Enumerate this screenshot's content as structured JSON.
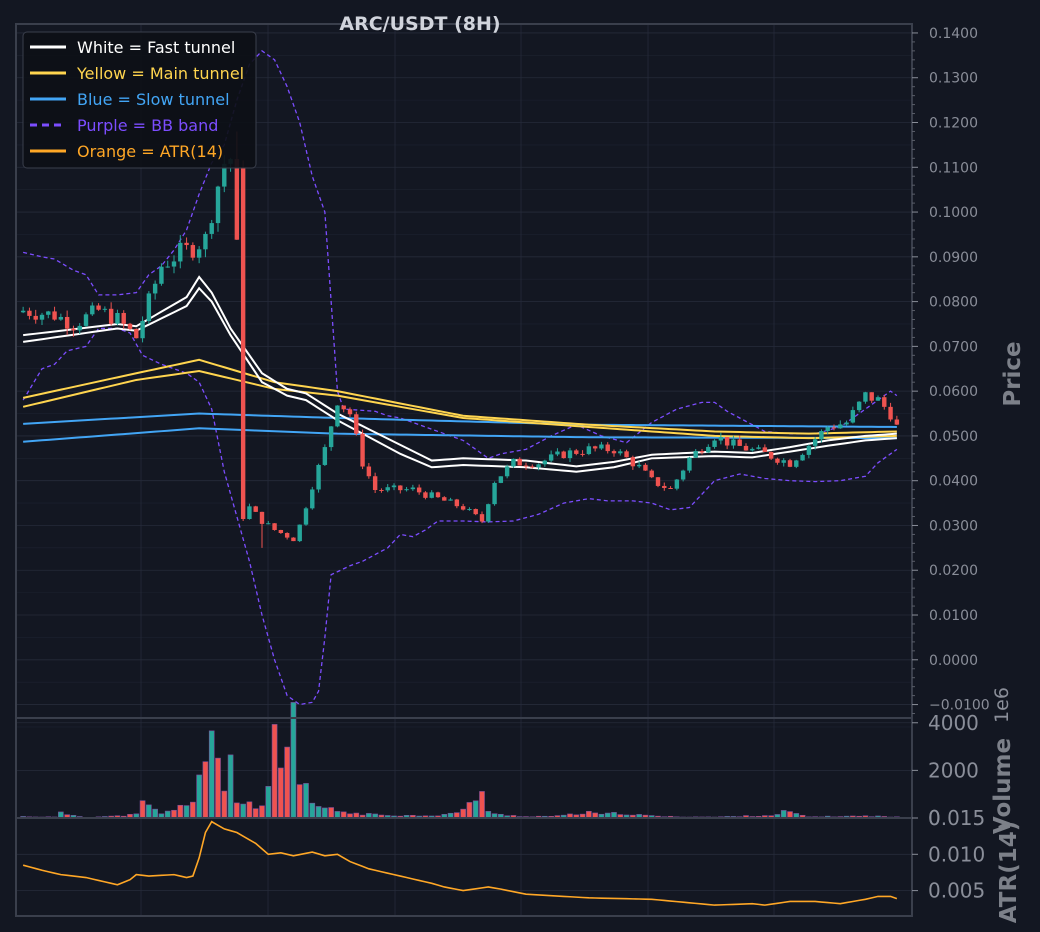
{
  "chart_data": {
    "type": "candlestick",
    "title": "ARC/USDT (8H)",
    "colors": {
      "background": "#131722",
      "up": "#26a69a",
      "down": "#ef5350",
      "fast_tunnel": "#ffffff",
      "main_tunnel": "#ffd54f",
      "slow_tunnel": "#42a5f5",
      "bb": "#7c4dff",
      "atr": "#ffa726",
      "grid": "#262b3a",
      "frame": "#3a3f4c"
    },
    "legend": {
      "position": "top-left",
      "entries": [
        {
          "label": "White = Fast tunnel",
          "color": "#ffffff",
          "style": "solid"
        },
        {
          "label": "Yellow = Main tunnel",
          "color": "#ffd54f",
          "style": "solid"
        },
        {
          "label": "Blue = Slow tunnel",
          "color": "#42a5f5",
          "style": "solid"
        },
        {
          "label": "Purple = BB band",
          "color": "#7c4dff",
          "style": "dashed"
        },
        {
          "label": "Orange = ATR(14)",
          "color": "#ffa726",
          "style": "solid"
        }
      ]
    },
    "price_panel": {
      "ylabel": "Price",
      "ylim": [
        -0.013,
        0.142
      ],
      "ticks": [
        "0.1400",
        "0.1300",
        "0.1200",
        "0.1100",
        "0.1000",
        "0.0900",
        "0.0800",
        "0.0700",
        "0.0600",
        "0.0500",
        "0.0400",
        "0.0300",
        "0.0200",
        "0.0100",
        "0.0000",
        "−0.0100"
      ],
      "tick_values": [
        0.14,
        0.13,
        0.12,
        0.11,
        0.1,
        0.09,
        0.08,
        0.07,
        0.06,
        0.05,
        0.04,
        0.03,
        0.02,
        0.01,
        0.0,
        -0.01
      ]
    },
    "volume_panel": {
      "ylabel": "Volume",
      "offset_text": "1e6",
      "ylim": [
        0,
        4200
      ],
      "ticks": [
        "4000",
        "2000",
        "0"
      ],
      "tick_values": [
        4000,
        2000,
        0
      ]
    },
    "atr_panel": {
      "ylabel": "ATR(14)",
      "ylim": [
        0.0015,
        0.015
      ],
      "ticks": [
        "0.015",
        "0.010",
        "0.005"
      ],
      "tick_values": [
        0.015,
        0.01,
        0.005
      ]
    },
    "n_bars": 140,
    "close_anchors": [
      [
        0,
        0.078
      ],
      [
        5,
        0.077
      ],
      [
        8,
        0.075
      ],
      [
        12,
        0.078
      ],
      [
        15,
        0.076
      ],
      [
        18,
        0.072
      ],
      [
        20,
        0.08
      ],
      [
        22,
        0.088
      ],
      [
        25,
        0.091
      ],
      [
        27,
        0.092
      ],
      [
        29,
        0.094
      ],
      [
        31,
        0.106
      ],
      [
        32,
        0.111
      ],
      [
        33,
        0.112
      ],
      [
        34,
        0.092
      ],
      [
        35,
        0.032
      ],
      [
        36,
        0.034
      ],
      [
        38,
        0.031
      ],
      [
        40,
        0.029
      ],
      [
        43,
        0.027
      ],
      [
        44,
        0.03
      ],
      [
        46,
        0.039
      ],
      [
        48,
        0.047
      ],
      [
        50,
        0.058
      ],
      [
        52,
        0.055
      ],
      [
        54,
        0.044
      ],
      [
        56,
        0.038
      ],
      [
        59,
        0.038
      ],
      [
        62,
        0.038
      ],
      [
        66,
        0.036
      ],
      [
        70,
        0.034
      ],
      [
        73,
        0.031
      ],
      [
        75,
        0.04
      ],
      [
        78,
        0.044
      ],
      [
        82,
        0.044
      ],
      [
        86,
        0.046
      ],
      [
        90,
        0.047
      ],
      [
        94,
        0.047
      ],
      [
        98,
        0.043
      ],
      [
        100,
        0.04
      ],
      [
        103,
        0.038
      ],
      [
        106,
        0.045
      ],
      [
        110,
        0.05
      ],
      [
        113,
        0.048
      ],
      [
        118,
        0.046
      ],
      [
        122,
        0.044
      ],
      [
        125,
        0.048
      ],
      [
        128,
        0.052
      ],
      [
        131,
        0.053
      ],
      [
        134,
        0.059
      ],
      [
        136,
        0.058
      ],
      [
        138,
        0.055
      ],
      [
        139,
        0.052
      ]
    ],
    "fast_upper_anchors": [
      [
        0,
        0.0725
      ],
      [
        15,
        0.075
      ],
      [
        18,
        0.0745
      ],
      [
        26,
        0.081
      ],
      [
        28,
        0.0855
      ],
      [
        30,
        0.082
      ],
      [
        33,
        0.074
      ],
      [
        38,
        0.064
      ],
      [
        42,
        0.0605
      ],
      [
        45,
        0.0595
      ],
      [
        50,
        0.055
      ],
      [
        60,
        0.048
      ],
      [
        65,
        0.0445
      ],
      [
        70,
        0.045
      ],
      [
        80,
        0.0445
      ],
      [
        88,
        0.0432
      ],
      [
        94,
        0.0442
      ],
      [
        100,
        0.0458
      ],
      [
        110,
        0.0465
      ],
      [
        116,
        0.0462
      ],
      [
        122,
        0.0475
      ],
      [
        128,
        0.049
      ],
      [
        134,
        0.05
      ],
      [
        139,
        0.0505
      ]
    ],
    "fast_lower_anchors": [
      [
        0,
        0.071
      ],
      [
        15,
        0.074
      ],
      [
        18,
        0.0735
      ],
      [
        26,
        0.079
      ],
      [
        28,
        0.083
      ],
      [
        30,
        0.08
      ],
      [
        33,
        0.0725
      ],
      [
        38,
        0.062
      ],
      [
        42,
        0.059
      ],
      [
        45,
        0.058
      ],
      [
        50,
        0.0535
      ],
      [
        60,
        0.046
      ],
      [
        65,
        0.043
      ],
      [
        70,
        0.0435
      ],
      [
        80,
        0.043
      ],
      [
        88,
        0.042
      ],
      [
        94,
        0.043
      ],
      [
        100,
        0.045
      ],
      [
        110,
        0.0455
      ],
      [
        116,
        0.0452
      ],
      [
        122,
        0.0465
      ],
      [
        128,
        0.0478
      ],
      [
        134,
        0.049
      ],
      [
        139,
        0.0495
      ]
    ],
    "main_upper_anchors": [
      [
        0,
        0.0585
      ],
      [
        18,
        0.064
      ],
      [
        28,
        0.067
      ],
      [
        40,
        0.062
      ],
      [
        50,
        0.06
      ],
      [
        70,
        0.0545
      ],
      [
        90,
        0.0525
      ],
      [
        110,
        0.051
      ],
      [
        125,
        0.0505
      ],
      [
        139,
        0.051
      ]
    ],
    "main_lower_anchors": [
      [
        0,
        0.0565
      ],
      [
        18,
        0.0625
      ],
      [
        28,
        0.0645
      ],
      [
        40,
        0.0605
      ],
      [
        50,
        0.059
      ],
      [
        70,
        0.054
      ],
      [
        90,
        0.052
      ],
      [
        110,
        0.05
      ],
      [
        125,
        0.0495
      ],
      [
        139,
        0.05
      ]
    ],
    "slow_upper_anchors": [
      [
        0,
        0.0527
      ],
      [
        28,
        0.055
      ],
      [
        50,
        0.054
      ],
      [
        90,
        0.0525
      ],
      [
        139,
        0.052
      ]
    ],
    "slow_lower_anchors": [
      [
        0,
        0.0487
      ],
      [
        28,
        0.0517
      ],
      [
        50,
        0.0505
      ],
      [
        90,
        0.0497
      ],
      [
        139,
        0.0495
      ]
    ],
    "bb_upper_anchors": [
      [
        0,
        0.091
      ],
      [
        3,
        0.09
      ],
      [
        5,
        0.0895
      ],
      [
        8,
        0.087
      ],
      [
        10,
        0.086
      ],
      [
        12,
        0.0815
      ],
      [
        15,
        0.0815
      ],
      [
        18,
        0.082
      ],
      [
        20,
        0.086
      ],
      [
        22,
        0.088
      ],
      [
        24,
        0.0915
      ],
      [
        26,
        0.096
      ],
      [
        28,
        0.104
      ],
      [
        30,
        0.111
      ],
      [
        32,
        0.115
      ],
      [
        34,
        0.125
      ],
      [
        36,
        0.133
      ],
      [
        38,
        0.136
      ],
      [
        40,
        0.134
      ],
      [
        42,
        0.128
      ],
      [
        44,
        0.12
      ],
      [
        46,
        0.108
      ],
      [
        48,
        0.1
      ],
      [
        49,
        0.08
      ],
      [
        50,
        0.06
      ],
      [
        51,
        0.056
      ],
      [
        56,
        0.0555
      ],
      [
        58,
        0.0545
      ],
      [
        60,
        0.054
      ],
      [
        64,
        0.052
      ],
      [
        70,
        0.049
      ],
      [
        74,
        0.045
      ],
      [
        76,
        0.046
      ],
      [
        80,
        0.047
      ],
      [
        84,
        0.05
      ],
      [
        88,
        0.0525
      ],
      [
        92,
        0.05
      ],
      [
        96,
        0.0485
      ],
      [
        100,
        0.053
      ],
      [
        104,
        0.056
      ],
      [
        108,
        0.0575
      ],
      [
        110,
        0.0575
      ],
      [
        112,
        0.0555
      ],
      [
        114,
        0.054
      ],
      [
        118,
        0.051
      ],
      [
        122,
        0.0505
      ],
      [
        126,
        0.0505
      ],
      [
        130,
        0.052
      ],
      [
        134,
        0.056
      ],
      [
        136,
        0.058
      ],
      [
        138,
        0.06
      ],
      [
        139,
        0.059
      ]
    ],
    "bb_lower_anchors": [
      [
        0,
        0.058
      ],
      [
        3,
        0.065
      ],
      [
        5,
        0.066
      ],
      [
        7,
        0.069
      ],
      [
        10,
        0.07
      ],
      [
        12,
        0.074
      ],
      [
        15,
        0.074
      ],
      [
        17,
        0.073
      ],
      [
        19,
        0.068
      ],
      [
        22,
        0.066
      ],
      [
        26,
        0.064
      ],
      [
        28,
        0.062
      ],
      [
        30,
        0.056
      ],
      [
        32,
        0.042
      ],
      [
        34,
        0.032
      ],
      [
        36,
        0.022
      ],
      [
        38,
        0.01
      ],
      [
        40,
        0.0
      ],
      [
        42,
        -0.008
      ],
      [
        44,
        -0.01
      ],
      [
        46,
        -0.0095
      ],
      [
        47,
        -0.007
      ],
      [
        48,
        0.005
      ],
      [
        49,
        0.019
      ],
      [
        52,
        0.021
      ],
      [
        54,
        0.022
      ],
      [
        58,
        0.025
      ],
      [
        60,
        0.028
      ],
      [
        62,
        0.0275
      ],
      [
        64,
        0.029
      ],
      [
        66,
        0.031
      ],
      [
        70,
        0.031
      ],
      [
        74,
        0.0308
      ],
      [
        78,
        0.031
      ],
      [
        82,
        0.0325
      ],
      [
        86,
        0.035
      ],
      [
        90,
        0.036
      ],
      [
        93,
        0.0355
      ],
      [
        97,
        0.0355
      ],
      [
        100,
        0.035
      ],
      [
        103,
        0.0335
      ],
      [
        106,
        0.034
      ],
      [
        110,
        0.04
      ],
      [
        114,
        0.0415
      ],
      [
        118,
        0.0405
      ],
      [
        122,
        0.04
      ],
      [
        126,
        0.0398
      ],
      [
        130,
        0.04
      ],
      [
        134,
        0.041
      ],
      [
        136,
        0.044
      ],
      [
        138,
        0.046
      ],
      [
        139,
        0.047
      ]
    ],
    "volume_anchors": [
      [
        0,
        60
      ],
      [
        5,
        40
      ],
      [
        6,
        200
      ],
      [
        10,
        30
      ],
      [
        15,
        80
      ],
      [
        18,
        150
      ],
      [
        19,
        600
      ],
      [
        21,
        350
      ],
      [
        22,
        200
      ],
      [
        24,
        300
      ],
      [
        27,
        800
      ],
      [
        28,
        1800
      ],
      [
        29,
        2500
      ],
      [
        30,
        3300
      ],
      [
        31,
        2000
      ],
      [
        32,
        1000
      ],
      [
        33,
        2900
      ],
      [
        34,
        700
      ],
      [
        35,
        600
      ],
      [
        36,
        650
      ],
      [
        38,
        400
      ],
      [
        39,
        1200
      ],
      [
        40,
        4000
      ],
      [
        41,
        2000
      ],
      [
        42,
        2300
      ],
      [
        43,
        4000
      ],
      [
        44,
        1300
      ],
      [
        45,
        1200
      ],
      [
        46,
        600
      ],
      [
        47,
        500
      ],
      [
        48,
        400
      ],
      [
        50,
        300
      ],
      [
        52,
        200
      ],
      [
        55,
        150
      ],
      [
        58,
        120
      ],
      [
        62,
        100
      ],
      [
        66,
        110
      ],
      [
        68,
        180
      ],
      [
        70,
        300
      ],
      [
        72,
        900
      ],
      [
        73,
        1100
      ],
      [
        74,
        300
      ],
      [
        75,
        150
      ],
      [
        80,
        60
      ],
      [
        85,
        80
      ],
      [
        90,
        220
      ],
      [
        92,
        150
      ],
      [
        95,
        200
      ],
      [
        98,
        120
      ],
      [
        102,
        60
      ],
      [
        110,
        40
      ],
      [
        120,
        120
      ],
      [
        121,
        300
      ],
      [
        122,
        250
      ],
      [
        123,
        150
      ],
      [
        125,
        50
      ],
      [
        134,
        80
      ],
      [
        135,
        80
      ],
      [
        139,
        40
      ]
    ],
    "atr_anchors": [
      [
        0,
        0.0085
      ],
      [
        3,
        0.0078
      ],
      [
        6,
        0.0072
      ],
      [
        10,
        0.0068
      ],
      [
        13,
        0.0062
      ],
      [
        15,
        0.0058
      ],
      [
        17,
        0.0065
      ],
      [
        18,
        0.0072
      ],
      [
        20,
        0.007
      ],
      [
        24,
        0.0072
      ],
      [
        26,
        0.0068
      ],
      [
        27,
        0.007
      ],
      [
        28,
        0.0095
      ],
      [
        29,
        0.013
      ],
      [
        30,
        0.0145
      ],
      [
        32,
        0.0135
      ],
      [
        34,
        0.013
      ],
      [
        37,
        0.0115
      ],
      [
        39,
        0.01
      ],
      [
        41,
        0.0102
      ],
      [
        43,
        0.0098
      ],
      [
        46,
        0.0103
      ],
      [
        48,
        0.0098
      ],
      [
        50,
        0.01
      ],
      [
        52,
        0.009
      ],
      [
        55,
        0.008
      ],
      [
        60,
        0.007
      ],
      [
        65,
        0.006
      ],
      [
        67,
        0.0055
      ],
      [
        70,
        0.005
      ],
      [
        74,
        0.0055
      ],
      [
        76,
        0.0052
      ],
      [
        80,
        0.0045
      ],
      [
        90,
        0.004
      ],
      [
        100,
        0.0038
      ],
      [
        110,
        0.003
      ],
      [
        116,
        0.0032
      ],
      [
        118,
        0.003
      ],
      [
        122,
        0.0035
      ],
      [
        126,
        0.0035
      ],
      [
        130,
        0.0032
      ],
      [
        134,
        0.0038
      ],
      [
        136,
        0.0042
      ],
      [
        138,
        0.0042
      ],
      [
        139,
        0.0039
      ]
    ]
  }
}
